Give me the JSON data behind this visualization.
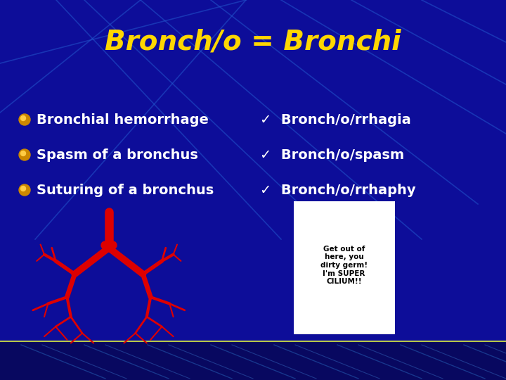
{
  "title": "Bronch/o = Bronchi",
  "title_color": "#FFD700",
  "title_fontsize": 28,
  "title_fontstyle": "italic",
  "title_fontweight": "bold",
  "bg_color": "#0D0D99",
  "left_bullets": [
    "Bronchial hemorrhage",
    "Spasm of a bronchus",
    "Suturing of a bronchus"
  ],
  "right_bullets": [
    "✓  Bronch/o/rrhagia",
    "✓  Bronch/o/spasm",
    "✓  Bronch/o/rrhaphy"
  ],
  "bullet_color": "#FFFFFF",
  "bullet_fontsize": 14,
  "bullet_marker_color": "#CC8800",
  "diag_line_color": "#2255CC",
  "bottom_line_color": "#CCDD44",
  "speech_text": "Get out of\nhere, you\ndirty germ!\nI'm SUPER\nCILIUM!!"
}
